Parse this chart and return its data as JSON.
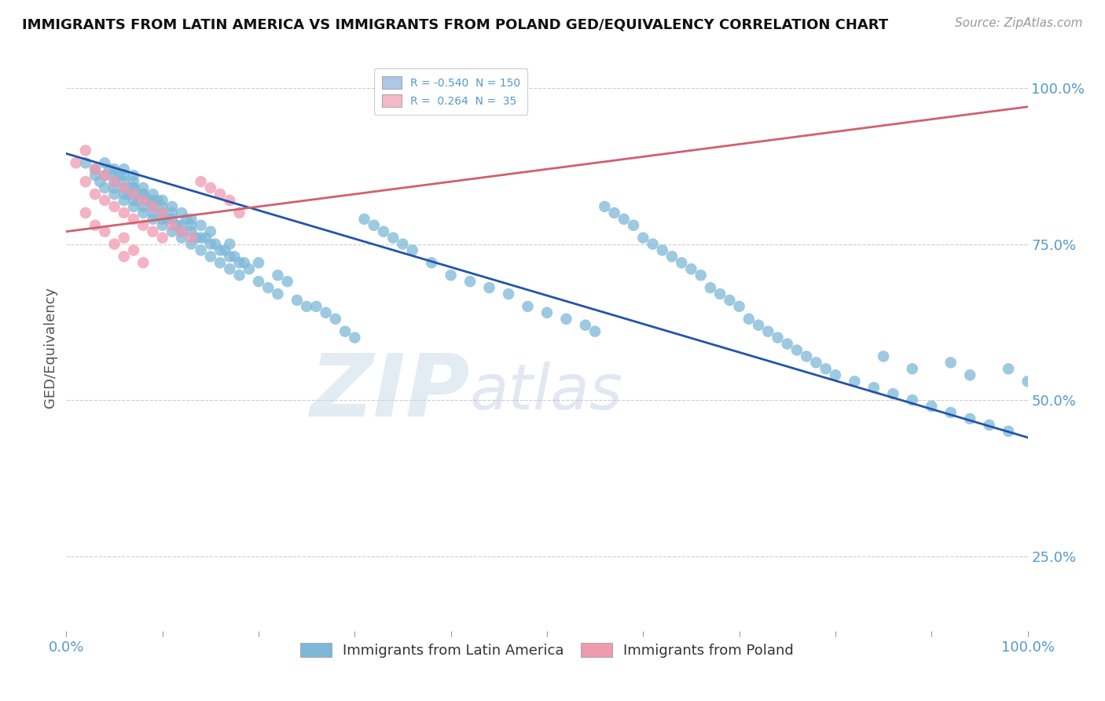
{
  "title": "IMMIGRANTS FROM LATIN AMERICA VS IMMIGRANTS FROM POLAND GED/EQUIVALENCY CORRELATION CHART",
  "source_text": "Source: ZipAtlas.com",
  "ylabel": "GED/Equivalency",
  "right_yticks": [
    0.25,
    0.5,
    0.75,
    1.0
  ],
  "right_yticklabels": [
    "25.0%",
    "50.0%",
    "75.0%",
    "100.0%"
  ],
  "legend_entries": [
    {
      "label_r": "R = -0.540",
      "label_n": "N = 150",
      "color": "#aec6e8"
    },
    {
      "label_r": "R =  0.264",
      "label_n": "N =  35",
      "color": "#f4b8c8"
    }
  ],
  "legend_labels_bottom": [
    "Immigrants from Latin America",
    "Immigrants from Poland"
  ],
  "blue_color": "#7db8d8",
  "pink_color": "#f09ab0",
  "blue_line_color": "#2255aa",
  "pink_line_color": "#d06070",
  "watermark_zip": "ZIP",
  "watermark_atlas": "atlas",
  "blue_scatter_x": [
    0.02,
    0.03,
    0.03,
    0.035,
    0.04,
    0.04,
    0.04,
    0.045,
    0.05,
    0.05,
    0.05,
    0.05,
    0.05,
    0.055,
    0.06,
    0.06,
    0.06,
    0.06,
    0.06,
    0.06,
    0.065,
    0.07,
    0.07,
    0.07,
    0.07,
    0.07,
    0.07,
    0.07,
    0.075,
    0.08,
    0.08,
    0.08,
    0.08,
    0.08,
    0.085,
    0.09,
    0.09,
    0.09,
    0.09,
    0.09,
    0.095,
    0.1,
    0.1,
    0.1,
    0.1,
    0.1,
    0.105,
    0.11,
    0.11,
    0.11,
    0.11,
    0.115,
    0.12,
    0.12,
    0.12,
    0.12,
    0.125,
    0.13,
    0.13,
    0.13,
    0.13,
    0.135,
    0.14,
    0.14,
    0.14,
    0.145,
    0.15,
    0.15,
    0.15,
    0.155,
    0.16,
    0.16,
    0.165,
    0.17,
    0.17,
    0.17,
    0.175,
    0.18,
    0.18,
    0.185,
    0.19,
    0.2,
    0.2,
    0.21,
    0.22,
    0.22,
    0.23,
    0.24,
    0.25,
    0.26,
    0.27,
    0.28,
    0.29,
    0.3,
    0.31,
    0.32,
    0.33,
    0.34,
    0.35,
    0.36,
    0.38,
    0.4,
    0.42,
    0.44,
    0.46,
    0.48,
    0.5,
    0.52,
    0.54,
    0.55,
    0.56,
    0.57,
    0.58,
    0.59,
    0.6,
    0.61,
    0.62,
    0.63,
    0.64,
    0.65,
    0.66,
    0.67,
    0.68,
    0.69,
    0.7,
    0.71,
    0.72,
    0.73,
    0.74,
    0.75,
    0.76,
    0.77,
    0.78,
    0.79,
    0.8,
    0.82,
    0.84,
    0.86,
    0.88,
    0.9,
    0.92,
    0.94,
    0.96,
    0.98,
    0.85,
    0.88,
    0.92,
    0.94,
    0.98,
    1.0
  ],
  "blue_scatter_y": [
    0.88,
    0.87,
    0.86,
    0.85,
    0.88,
    0.86,
    0.84,
    0.87,
    0.86,
    0.85,
    0.83,
    0.87,
    0.84,
    0.86,
    0.85,
    0.83,
    0.82,
    0.86,
    0.84,
    0.87,
    0.83,
    0.84,
    0.83,
    0.82,
    0.85,
    0.84,
    0.81,
    0.86,
    0.82,
    0.84,
    0.83,
    0.81,
    0.8,
    0.83,
    0.82,
    0.82,
    0.8,
    0.79,
    0.81,
    0.83,
    0.82,
    0.8,
    0.78,
    0.82,
    0.79,
    0.81,
    0.79,
    0.79,
    0.77,
    0.81,
    0.8,
    0.78,
    0.78,
    0.76,
    0.8,
    0.77,
    0.79,
    0.77,
    0.75,
    0.79,
    0.78,
    0.76,
    0.76,
    0.74,
    0.78,
    0.76,
    0.75,
    0.73,
    0.77,
    0.75,
    0.74,
    0.72,
    0.74,
    0.73,
    0.71,
    0.75,
    0.73,
    0.72,
    0.7,
    0.72,
    0.71,
    0.72,
    0.69,
    0.68,
    0.67,
    0.7,
    0.69,
    0.66,
    0.65,
    0.65,
    0.64,
    0.63,
    0.61,
    0.6,
    0.79,
    0.78,
    0.77,
    0.76,
    0.75,
    0.74,
    0.72,
    0.7,
    0.69,
    0.68,
    0.67,
    0.65,
    0.64,
    0.63,
    0.62,
    0.61,
    0.81,
    0.8,
    0.79,
    0.78,
    0.76,
    0.75,
    0.74,
    0.73,
    0.72,
    0.71,
    0.7,
    0.68,
    0.67,
    0.66,
    0.65,
    0.63,
    0.62,
    0.61,
    0.6,
    0.59,
    0.58,
    0.57,
    0.56,
    0.55,
    0.54,
    0.53,
    0.52,
    0.51,
    0.5,
    0.49,
    0.48,
    0.47,
    0.46,
    0.45,
    0.57,
    0.55,
    0.56,
    0.54,
    0.55,
    0.53
  ],
  "pink_scatter_x": [
    0.01,
    0.02,
    0.02,
    0.02,
    0.03,
    0.03,
    0.03,
    0.04,
    0.04,
    0.04,
    0.05,
    0.05,
    0.05,
    0.06,
    0.06,
    0.06,
    0.06,
    0.07,
    0.07,
    0.07,
    0.08,
    0.08,
    0.08,
    0.09,
    0.09,
    0.1,
    0.1,
    0.11,
    0.12,
    0.13,
    0.14,
    0.15,
    0.16,
    0.17,
    0.18
  ],
  "pink_scatter_y": [
    0.88,
    0.9,
    0.85,
    0.8,
    0.87,
    0.83,
    0.78,
    0.86,
    0.82,
    0.77,
    0.85,
    0.81,
    0.75,
    0.84,
    0.8,
    0.76,
    0.73,
    0.83,
    0.79,
    0.74,
    0.82,
    0.78,
    0.72,
    0.81,
    0.77,
    0.8,
    0.76,
    0.78,
    0.77,
    0.76,
    0.85,
    0.84,
    0.83,
    0.82,
    0.8
  ],
  "blue_trend_x": [
    0.0,
    1.0
  ],
  "blue_trend_y": [
    0.895,
    0.44
  ],
  "pink_trend_x": [
    0.0,
    1.0
  ],
  "pink_trend_y": [
    0.77,
    0.97
  ],
  "xlim": [
    0.0,
    1.0
  ],
  "ylim": [
    0.13,
    1.04
  ],
  "grid_yticks": [
    0.25,
    0.5,
    0.75,
    1.0
  ],
  "grid_color": "#cccccc",
  "background_color": "#ffffff",
  "tick_color": "#5599cc",
  "title_fontsize": 13,
  "source_fontsize": 11,
  "axis_label_fontsize": 13,
  "tick_fontsize": 13
}
